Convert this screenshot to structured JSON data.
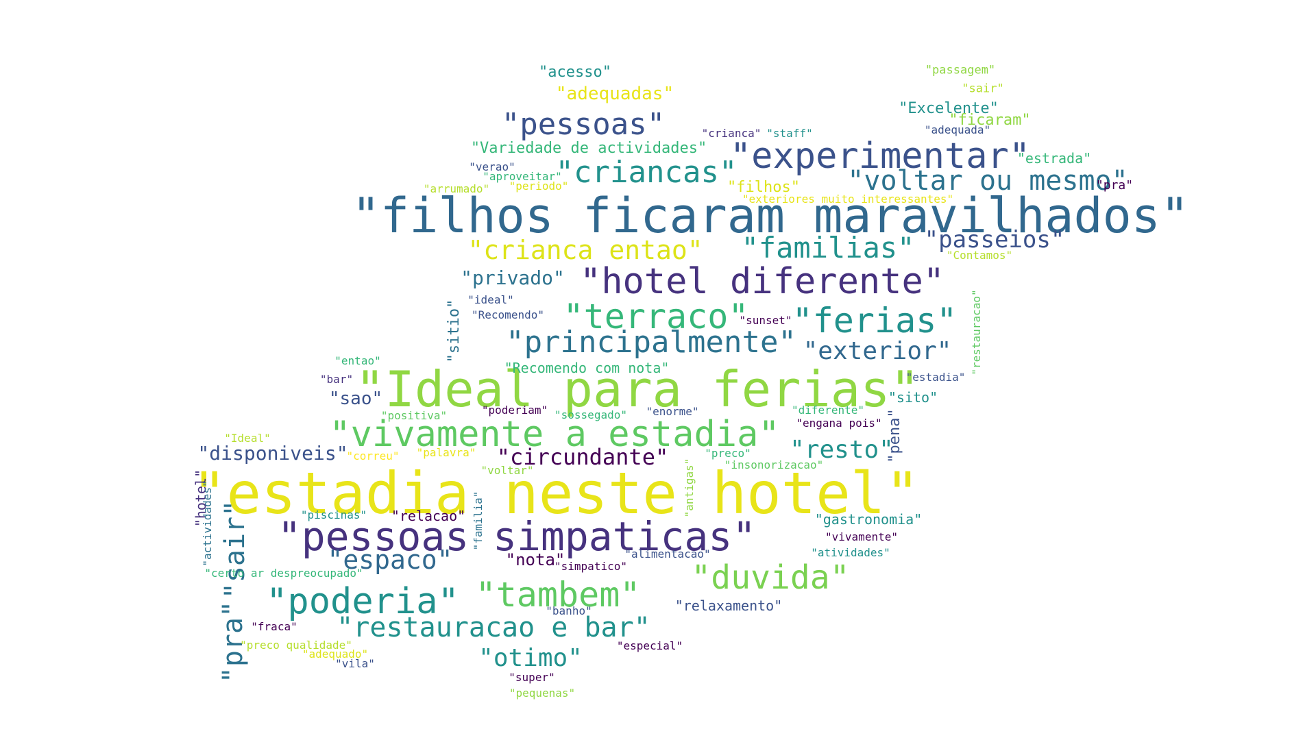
{
  "colors": {
    "background": "#ffffff",
    "palette": [
      "#440154",
      "#3b528b",
      "#21918c",
      "#5ec962",
      "#fde725",
      "#2c728e",
      "#90d743",
      "#31688e"
    ]
  },
  "words": [
    {
      "text": "\"filhos ficaram maravilhados\"",
      "color": "#31688e"
    },
    {
      "text": "\"Ideal para ferias\"",
      "color": "#90d743"
    },
    {
      "text": "\"estadia neste hotel\"",
      "color": "#e8e419"
    },
    {
      "text": "\"pessoas simpaticas\"",
      "color": "#46327e"
    },
    {
      "text": "\"hotel diferente\"",
      "color": "#46327e"
    },
    {
      "text": "\"vivamente a estadia\"",
      "color": "#5ec962"
    },
    {
      "text": "\"experimentar\"",
      "color": "#3b528b"
    },
    {
      "text": "\"pessoas\"",
      "color": "#3b528b"
    },
    {
      "text": "\"criancas\"",
      "color": "#21918c"
    },
    {
      "text": "\"voltar ou mesmo\"",
      "color": "#2c728e"
    },
    {
      "text": "\"crianca entao\"",
      "color": "#dde318"
    },
    {
      "text": "\"familias\"",
      "color": "#21918c"
    },
    {
      "text": "\"passeios\"",
      "color": "#3b528b"
    },
    {
      "text": "\"terraco\"",
      "color": "#35b779"
    },
    {
      "text": "\"ferias\"",
      "color": "#21918c"
    },
    {
      "text": "\"principalmente\"",
      "color": "#2c728e"
    },
    {
      "text": "\"exterior\"",
      "color": "#31688e"
    },
    {
      "text": "\"resto\"",
      "color": "#21918c"
    },
    {
      "text": "\"circundante\"",
      "color": "#440154"
    },
    {
      "text": "\"disponiveis\"",
      "color": "#3b528b"
    },
    {
      "text": "\"espaco\"",
      "color": "#31688e"
    },
    {
      "text": "\"duvida\"",
      "color": "#7ad151"
    },
    {
      "text": "\"poderia\"",
      "color": "#21918c"
    },
    {
      "text": "\"tambem\"",
      "color": "#5ec962"
    },
    {
      "text": "\"restauracao e bar\"",
      "color": "#21918c"
    },
    {
      "text": "\"otimo\"",
      "color": "#21918c"
    },
    {
      "text": "\"sair\"",
      "color": "#2c728e"
    },
    {
      "text": "\"pra\"",
      "color": "#2c728e"
    },
    {
      "text": "\"privado\"",
      "color": "#2c728e"
    },
    {
      "text": "\"sao\"",
      "color": "#3b528b"
    },
    {
      "text": "\"adequadas\"",
      "color": "#e8e419"
    },
    {
      "text": "\"acesso\"",
      "color": "#21918c"
    },
    {
      "text": "\"Variedade de actividades\"",
      "color": "#35b779"
    },
    {
      "text": "\"Excelente\"",
      "color": "#21918c"
    },
    {
      "text": "\"ficaram\"",
      "color": "#90d743"
    },
    {
      "text": "\"passagem\"",
      "color": "#90d743"
    },
    {
      "text": "\"sair\"",
      "color": "#b5de2b"
    },
    {
      "text": "\"estrada\"",
      "color": "#35b779"
    },
    {
      "text": "\"pra\"",
      "color": "#440154"
    },
    {
      "text": "\"adequada\"",
      "color": "#3b528b"
    },
    {
      "text": "\"crianca\"",
      "color": "#46327e"
    },
    {
      "text": "\"staff\"",
      "color": "#21918c"
    },
    {
      "text": "\"verao\"",
      "color": "#3b528b"
    },
    {
      "text": "\"aproveitar\"",
      "color": "#35b779"
    },
    {
      "text": "\"arrumado\"",
      "color": "#b5de2b"
    },
    {
      "text": "\"periodo\"",
      "color": "#dde318"
    },
    {
      "text": "\"filhos\"",
      "color": "#dde318"
    },
    {
      "text": "\"exteriores muito interessantes\"",
      "color": "#e8e419"
    },
    {
      "text": "\"Contamos\"",
      "color": "#b5de2b"
    },
    {
      "text": "\"ideal\"",
      "color": "#3b528b"
    },
    {
      "text": "\"Recomendo\"",
      "color": "#3b528b"
    },
    {
      "text": "\"sunset\"",
      "color": "#440154"
    },
    {
      "text": "\"sitio\"",
      "color": "#2c728e"
    },
    {
      "text": "\"restauracao\"",
      "color": "#5ec962"
    },
    {
      "text": "\"entao\"",
      "color": "#35b779"
    },
    {
      "text": "\"bar\"",
      "color": "#46327e"
    },
    {
      "text": "\"Recomendo com nota\"",
      "color": "#35b779"
    },
    {
      "text": "\"estadia\"",
      "color": "#3b528b"
    },
    {
      "text": "\"sito\"",
      "color": "#21918c"
    },
    {
      "text": "\"positiva\"",
      "color": "#5ec962"
    },
    {
      "text": "\"poderiam\"",
      "color": "#440154"
    },
    {
      "text": "\"sossegado\"",
      "color": "#35b779"
    },
    {
      "text": "\"enorme\"",
      "color": "#3b528b"
    },
    {
      "text": "\"diferente\"",
      "color": "#35b779"
    },
    {
      "text": "\"engana pois\"",
      "color": "#440154"
    },
    {
      "text": "\"pena\"",
      "color": "#3b528b"
    },
    {
      "text": "\"Ideal\"",
      "color": "#b5de2b"
    },
    {
      "text": "\"hotel\"",
      "color": "#46327e"
    },
    {
      "text": "\"actividades\"",
      "color": "#2c728e"
    },
    {
      "text": "\"correu\"",
      "color": "#fde725"
    },
    {
      "text": "\"palavra\"",
      "color": "#e8e419"
    },
    {
      "text": "\"voltar\"",
      "color": "#90d743"
    },
    {
      "text": "\"preco\"",
      "color": "#35b779"
    },
    {
      "text": "\"insonorizacao\"",
      "color": "#5ec962"
    },
    {
      "text": "\"antigas\"",
      "color": "#90d743"
    },
    {
      "text": "\"familia\"",
      "color": "#2c728e"
    },
    {
      "text": "\"piscinas\"",
      "color": "#21918c"
    },
    {
      "text": "\"relacao\"",
      "color": "#440154"
    },
    {
      "text": "\"gastronomia\"",
      "color": "#21918c"
    },
    {
      "text": "\"vivamente\"",
      "color": "#440154"
    },
    {
      "text": "\"atividades\"",
      "color": "#21918c"
    },
    {
      "text": "\"nota\"",
      "color": "#440154"
    },
    {
      "text": "\"simpatico\"",
      "color": "#440154"
    },
    {
      "text": "\"alimentacao\"",
      "color": "#3b528b"
    },
    {
      "text": "\"certo ar despreocupado\"",
      "color": "#35b779"
    },
    {
      "text": "\"relaxamento\"",
      "color": "#3b528b"
    },
    {
      "text": "\"banho\"",
      "color": "#3b528b"
    },
    {
      "text": "\"fraca\"",
      "color": "#440154"
    },
    {
      "text": "\"preco qualidade\"",
      "color": "#b5de2b"
    },
    {
      "text": "\"adequado\"",
      "color": "#dde318"
    },
    {
      "text": "\"vila\"",
      "color": "#3b528b"
    },
    {
      "text": "\"especial\"",
      "color": "#440154"
    },
    {
      "text": "\"super\"",
      "color": "#440154"
    },
    {
      "text": "\"pequenas\"",
      "color": "#90d743"
    }
  ]
}
